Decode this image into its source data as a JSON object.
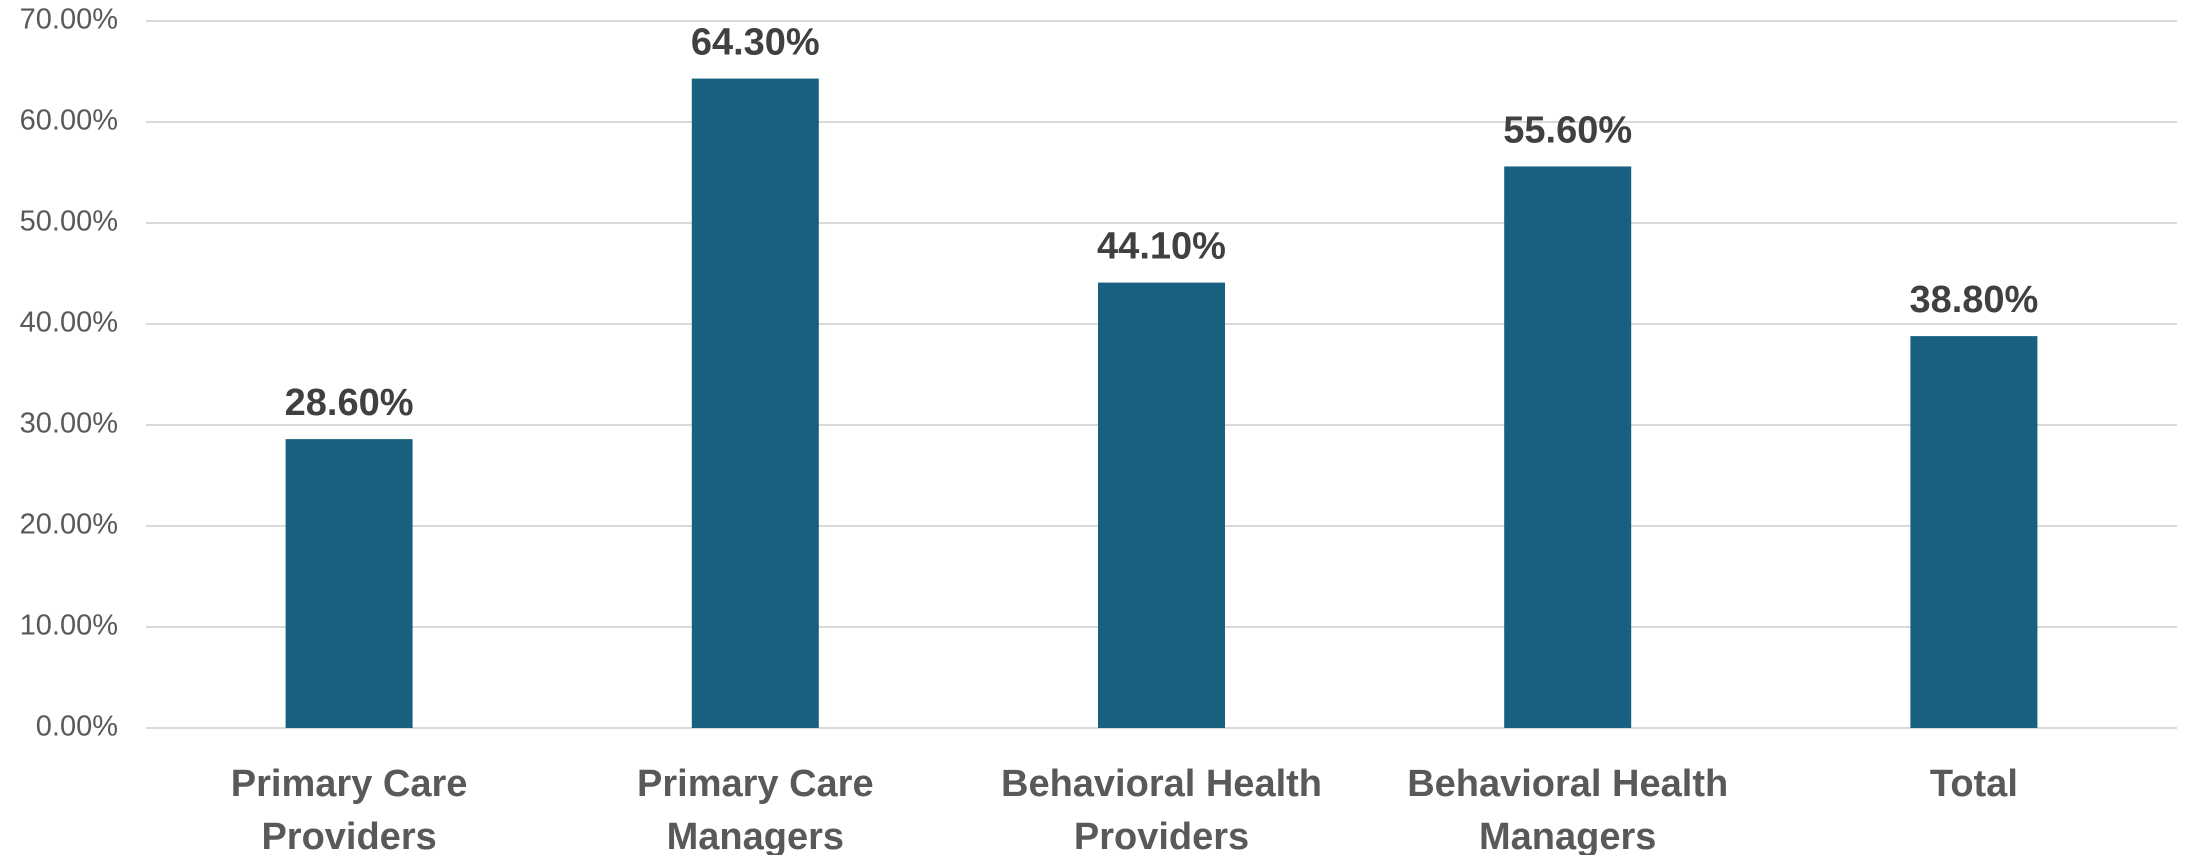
{
  "chart_data": {
    "type": "bar",
    "categories": [
      [
        "Primary Care",
        "Providers"
      ],
      [
        "Primary Care",
        "Managers"
      ],
      [
        "Behavioral Health",
        "Providers"
      ],
      [
        "Behavioral Health",
        "Managers"
      ],
      [
        "Total"
      ]
    ],
    "values": [
      28.6,
      64.3,
      44.1,
      55.6,
      38.8
    ],
    "data_labels": [
      "28.60%",
      "64.30%",
      "44.10%",
      "55.60%",
      "38.80%"
    ],
    "y_ticks": [
      0,
      10,
      20,
      30,
      40,
      50,
      60,
      70
    ],
    "y_tick_labels": [
      "0.00%",
      "10.00%",
      "20.00%",
      "30.00%",
      "40.00%",
      "50.00%",
      "60.00%",
      "70.00%"
    ],
    "ylim": [
      0,
      70
    ],
    "title": "",
    "xlabel": "",
    "ylabel": "",
    "grid": true,
    "legend": "none",
    "bar_color": "#17607f"
  }
}
